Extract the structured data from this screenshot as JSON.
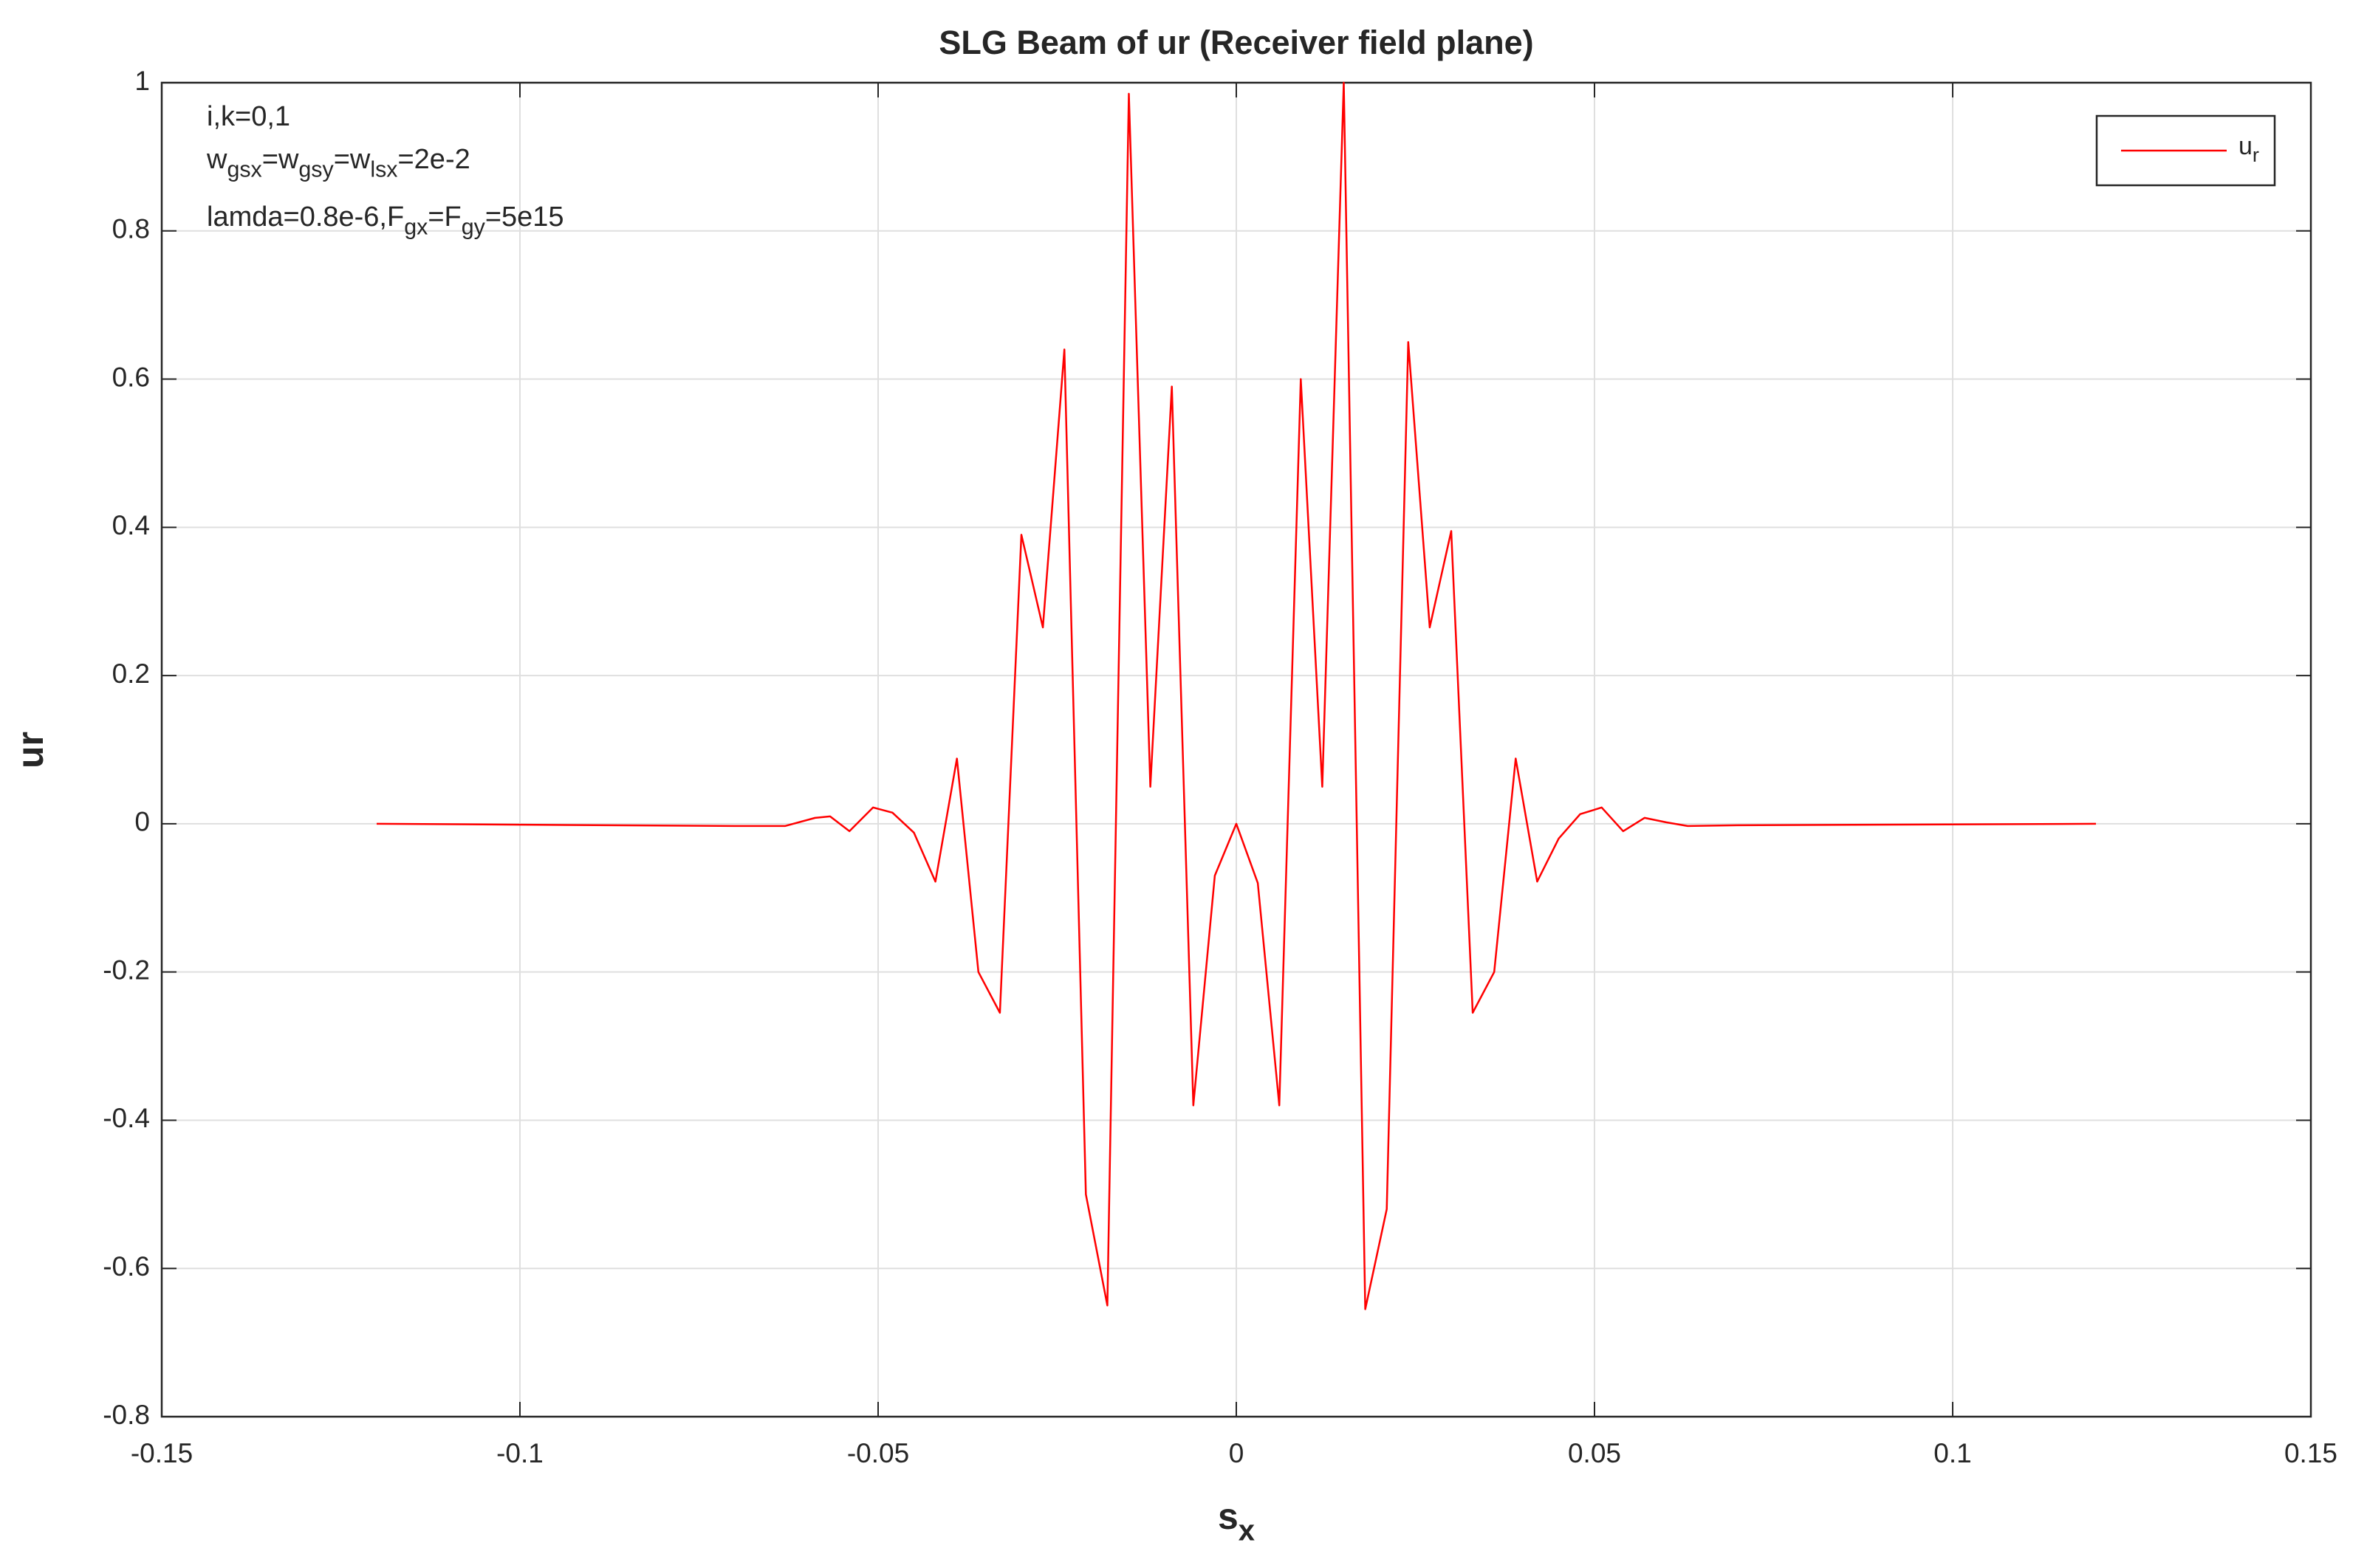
{
  "chart_data": {
    "type": "line",
    "title": "SLG  Beam of  ur     (Receiver field plane)",
    "x_label": [
      {
        "text": "s"
      },
      {
        "sub": "x"
      }
    ],
    "y_label": "ur",
    "annotations": [
      [
        {
          "text": "i,k=0,1"
        }
      ],
      [
        {
          "text": "w"
        },
        {
          "sub": "gsx"
        },
        {
          "text": "=w"
        },
        {
          "sub": "gsy"
        },
        {
          "text": "=w"
        },
        {
          "sub": "lsx"
        },
        {
          "text": "=2e-2"
        }
      ],
      [
        {
          "text": "lamda=0.8e-6,F"
        },
        {
          "sub": "gx"
        },
        {
          "text": "=F"
        },
        {
          "sub": "gy"
        },
        {
          "text": "=5e15"
        }
      ]
    ],
    "x": [
      -0.12,
      -0.07,
      -0.063,
      -0.0588,
      -0.0567,
      -0.054,
      -0.0507,
      -0.048,
      -0.045,
      -0.042,
      -0.039,
      -0.036,
      -0.033,
      -0.03,
      -0.027,
      -0.024,
      -0.021,
      -0.018,
      -0.015,
      -0.012,
      -0.009,
      -0.006,
      -0.003,
      0,
      0.003,
      0.006,
      0.009,
      0.012,
      0.015,
      0.018,
      0.021,
      0.024,
      0.027,
      0.03,
      0.033,
      0.036,
      0.039,
      0.042,
      0.045,
      0.048,
      0.051,
      0.054,
      0.057,
      0.06,
      0.063,
      0.07,
      0.12
    ],
    "series": [
      {
        "name": [
          {
            "text": "u"
          },
          {
            "sub": "r"
          }
        ],
        "color": "#ff0000",
        "values": [
          0,
          -0.003,
          -0.003,
          0.008,
          0.01,
          -0.01,
          0.022,
          0.015,
          -0.012,
          -0.078,
          0.088,
          -0.2,
          -0.255,
          0.39,
          0.265,
          0.64,
          -0.5,
          -0.65,
          0.985,
          0.05,
          0.59,
          -0.38,
          -0.07,
          0,
          -0.08,
          -0.38,
          0.6,
          0.05,
          1.0,
          -0.655,
          -0.52,
          0.65,
          0.265,
          0.395,
          -0.255,
          -0.2,
          0.088,
          -0.078,
          -0.02,
          0.013,
          0.022,
          -0.01,
          0.008,
          0.002,
          -0.003,
          -0.002,
          0
        ]
      }
    ],
    "xlim": [
      -0.15,
      0.15
    ],
    "xticks": [
      -0.15,
      -0.1,
      -0.05,
      0,
      0.05,
      0.1,
      0.15
    ],
    "ylim": [
      -0.8,
      1
    ],
    "yticks": [
      -0.8,
      -0.6,
      -0.4,
      -0.2,
      0,
      0.2,
      0.4,
      0.6,
      0.8,
      1
    ],
    "grid": true,
    "legend": "upper right"
  }
}
